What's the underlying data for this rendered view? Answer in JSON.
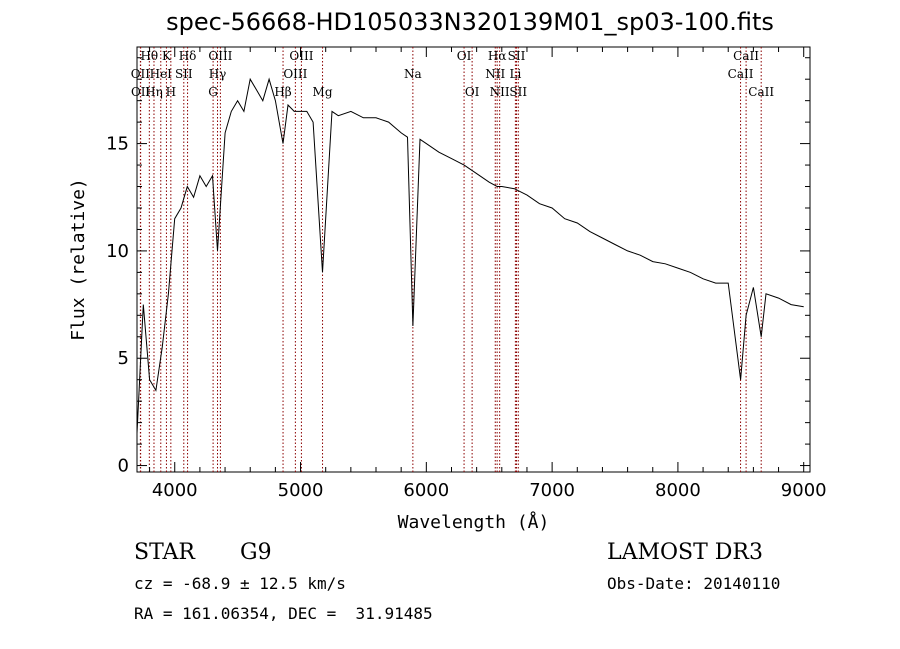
{
  "title": "spec-56668-HD105033N320139M01_sp03-100.fits",
  "info": {
    "object_class": "STAR",
    "subclass": "G9",
    "survey": "LAMOST DR3",
    "cz": "cz = -68.9 ± 12.5 km/s",
    "obs_date": "Obs-Date: 20140110",
    "coords": "RA = 161.06354, DEC =  31.91485"
  },
  "chart_data": {
    "type": "line",
    "xlabel": "Wavelength (Å)",
    "ylabel": "Flux (relative)",
    "xlim": [
      3700,
      9050
    ],
    "ylim": [
      -0.3,
      19.5
    ],
    "xticks": [
      4000,
      5000,
      6000,
      7000,
      8000,
      9000
    ],
    "yticks": [
      0,
      5,
      10,
      15
    ],
    "line_color": "#000000",
    "marker_color": "#8b0000",
    "series": [
      {
        "x": [
          3700,
          3750,
          3800,
          3850,
          3900,
          3950,
          4000,
          4050,
          4100,
          4150,
          4200,
          4250,
          4300,
          4340,
          4400,
          4450,
          4500,
          4550,
          4600,
          4650,
          4700,
          4750,
          4800,
          4861,
          4900,
          4950,
          5000,
          5050,
          5100,
          5175,
          5250,
          5300,
          5400,
          5500,
          5600,
          5700,
          5800,
          5850,
          5893,
          5950,
          6000,
          6100,
          6200,
          6300,
          6400,
          6500,
          6563,
          6600,
          6700,
          6800,
          6900,
          7000,
          7100,
          7200,
          7300,
          7400,
          7500,
          7600,
          7700,
          7800,
          7900,
          8000,
          8100,
          8200,
          8300,
          8400,
          8498,
          8542,
          8600,
          8662,
          8700,
          8800,
          8900,
          9000
        ],
        "y": [
          1.5,
          7.5,
          4.0,
          3.5,
          5.5,
          8.0,
          11.5,
          12.0,
          13.0,
          12.5,
          13.5,
          13.0,
          13.5,
          10.0,
          15.5,
          16.5,
          17.0,
          16.5,
          18.0,
          17.5,
          17.0,
          18.0,
          17.0,
          15.0,
          16.8,
          16.5,
          16.5,
          16.5,
          16.0,
          9.0,
          16.5,
          16.3,
          16.5,
          16.2,
          16.2,
          16.0,
          15.5,
          15.3,
          6.5,
          15.2,
          15.0,
          14.6,
          14.3,
          14.0,
          13.6,
          13.2,
          13.0,
          13.0,
          12.9,
          12.6,
          12.2,
          12.0,
          11.5,
          11.3,
          10.9,
          10.6,
          10.3,
          10.0,
          9.8,
          9.5,
          9.4,
          9.2,
          9.0,
          8.7,
          8.5,
          8.5,
          4.0,
          7.0,
          8.3,
          6.0,
          8.0,
          7.8,
          7.5,
          7.4
        ]
      }
    ],
    "lines": [
      {
        "label": "Hθ",
        "x": 3798,
        "row": 0
      },
      {
        "label": "OII",
        "x": 3727,
        "row": 1
      },
      {
        "label": "OII",
        "x": 3729,
        "row": 2
      },
      {
        "label": "Hη",
        "x": 3835,
        "row": 2
      },
      {
        "label": "HeI",
        "x": 3889,
        "row": 1
      },
      {
        "label": "K",
        "x": 3934,
        "row": 0
      },
      {
        "label": "H",
        "x": 3969,
        "row": 2
      },
      {
        "label": "SII",
        "x": 4072,
        "row": 1
      },
      {
        "label": "Hδ",
        "x": 4102,
        "row": 0
      },
      {
        "label": "OIII",
        "x": 4363,
        "row": 0
      },
      {
        "label": "Hγ",
        "x": 4340,
        "row": 1
      },
      {
        "label": "G",
        "x": 4305,
        "row": 2
      },
      {
        "label": "Hβ",
        "x": 4861,
        "row": 2
      },
      {
        "label": "OIII",
        "x": 4959,
        "row": 1
      },
      {
        "label": "OIII",
        "x": 5007,
        "row": 0
      },
      {
        "label": "Mg",
        "x": 5175,
        "row": 2
      },
      {
        "label": "Na",
        "x": 5893,
        "row": 1
      },
      {
        "label": "OI",
        "x": 6300,
        "row": 0
      },
      {
        "label": "OI",
        "x": 6364,
        "row": 2
      },
      {
        "label": "NII",
        "x": 6548,
        "row": 1
      },
      {
        "label": "Hα",
        "x": 6563,
        "row": 0
      },
      {
        "label": "NII",
        "x": 6583,
        "row": 2
      },
      {
        "label": "Li",
        "x": 6708,
        "row": 1
      },
      {
        "label": "SII",
        "x": 6717,
        "row": 0
      },
      {
        "label": "SII",
        "x": 6731,
        "row": 2
      },
      {
        "label": "CaII",
        "x": 8498,
        "row": 1
      },
      {
        "label": "CaII",
        "x": 8542,
        "row": 0
      },
      {
        "label": "CaII",
        "x": 8662,
        "row": 2
      }
    ]
  }
}
